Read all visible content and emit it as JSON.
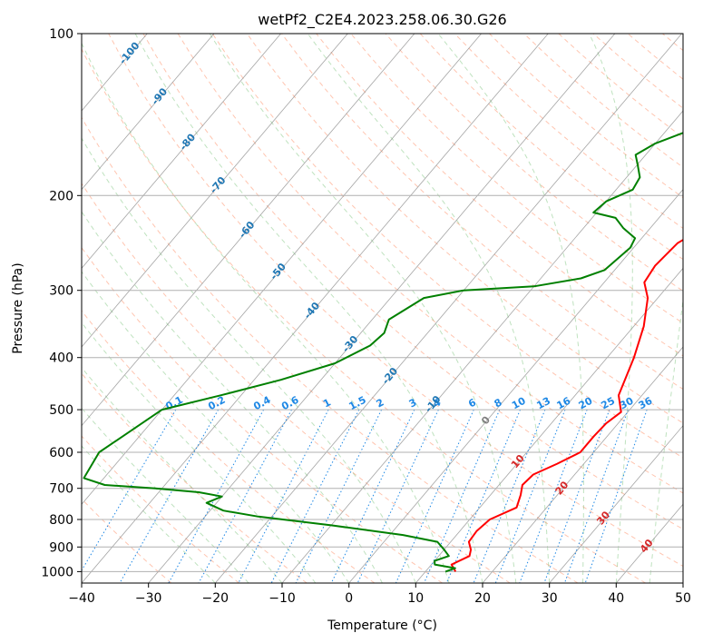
{
  "chart_data": {
    "type": "line",
    "title": "wetPf2_C2E4.2023.258.06.30.G26",
    "xlabel": "Temperature (°C)",
    "ylabel": "Pressure (hPa)",
    "xlim": [
      -40,
      50
    ],
    "ylim": [
      1050,
      100
    ],
    "y_scale": "log",
    "x_ticks": [
      -40,
      -30,
      -20,
      -10,
      0,
      10,
      20,
      30,
      40,
      50
    ],
    "y_ticks": [
      100,
      200,
      300,
      400,
      500,
      600,
      700,
      800,
      900,
      1000
    ],
    "grid": true,
    "series": [
      {
        "color": "#ff0000",
        "points": [
          [
            14.5,
            1000
          ],
          [
            13.0,
            970
          ],
          [
            14.6,
            935
          ],
          [
            14.0,
            910
          ],
          [
            12.7,
            880
          ],
          [
            12.5,
            840
          ],
          [
            13.0,
            800
          ],
          [
            15.5,
            760
          ],
          [
            14.5,
            720
          ],
          [
            13.5,
            690
          ],
          [
            13.8,
            660
          ],
          [
            16.0,
            630
          ],
          [
            18.0,
            600
          ],
          [
            18.0,
            560
          ],
          [
            18.2,
            530
          ],
          [
            19.0,
            505
          ],
          [
            16.5,
            470
          ],
          [
            14.0,
            400
          ],
          [
            11.5,
            350
          ],
          [
            8.5,
            310
          ],
          [
            6.0,
            290
          ],
          [
            5.5,
            270
          ],
          [
            6.0,
            245
          ],
          [
            8.5,
            225
          ],
          [
            9.5,
            205
          ],
          [
            8.5,
            195
          ],
          [
            9.5,
            180
          ],
          [
            10.0,
            165
          ],
          [
            9.5,
            152
          ],
          [
            10.5,
            142
          ],
          [
            13.0,
            135
          ],
          [
            15.0,
            128
          ],
          [
            16.5,
            120
          ],
          [
            16.8,
            110
          ],
          [
            16.0,
            100
          ]
        ]
      },
      {
        "color": "#008000",
        "points": [
          [
            13.0,
            1000
          ],
          [
            14.0,
            985
          ],
          [
            10.5,
            970
          ],
          [
            10.0,
            955
          ],
          [
            11.5,
            935
          ],
          [
            10.0,
            910
          ],
          [
            8.0,
            880
          ],
          [
            2.0,
            855
          ],
          [
            -10.0,
            820
          ],
          [
            -22.0,
            790
          ],
          [
            -28.0,
            770
          ],
          [
            -31.5,
            745
          ],
          [
            -30.0,
            725
          ],
          [
            -34.0,
            712
          ],
          [
            -41.0,
            700
          ],
          [
            -49.0,
            690
          ],
          [
            -53.0,
            670
          ],
          [
            -54.0,
            600
          ],
          [
            -50.0,
            500
          ],
          [
            -43.0,
            470
          ],
          [
            -36.0,
            440
          ],
          [
            -30.0,
            410
          ],
          [
            -27.0,
            380
          ],
          [
            -26.5,
            360
          ],
          [
            -27.5,
            340
          ],
          [
            -25.0,
            310
          ],
          [
            -20.0,
            300
          ],
          [
            -10.0,
            295
          ],
          [
            -4.0,
            285
          ],
          [
            -1.5,
            275
          ],
          [
            -0.5,
            250
          ],
          [
            -1.0,
            240
          ],
          [
            -4.0,
            230
          ],
          [
            -6.5,
            220
          ],
          [
            -10.5,
            215
          ],
          [
            -10.0,
            205
          ],
          [
            -7.5,
            195
          ],
          [
            -8.0,
            185
          ],
          [
            -10.0,
            175
          ],
          [
            -11.5,
            168
          ],
          [
            -10.0,
            160
          ],
          [
            -6.0,
            150
          ],
          [
            -3.5,
            140
          ],
          [
            -2.5,
            130
          ],
          [
            -1.5,
            122
          ],
          [
            1.5,
            115
          ],
          [
            5.5,
            110
          ],
          [
            8.5,
            105
          ],
          [
            10.5,
            100
          ]
        ]
      }
    ],
    "skewed_isotherms": [
      -100,
      -90,
      -80,
      -70,
      -60,
      -50,
      -40,
      -30,
      -20,
      -10,
      0,
      10,
      20,
      30,
      40,
      50
    ],
    "isotherm_labels": [
      "-100",
      "-90",
      "-80",
      "-70",
      "-60",
      "-50",
      "-40",
      "-30",
      "-20",
      "-10",
      "0",
      "10",
      "20",
      "30",
      "40"
    ],
    "mixing_ratio_lines": [
      "0.1",
      "0.2",
      "0.4",
      "0.6",
      "1",
      "1.5",
      "2",
      "3",
      "4",
      "6",
      "8",
      "10",
      "13",
      "16",
      "20",
      "25",
      "30",
      "36"
    ],
    "colors": {
      "temperature": "#ff0000",
      "dewpoint": "#008000",
      "cold_isotherm_labels": "#1f77b4",
      "zero_isotherm_label": "#808080",
      "warm_isotherm_labels": "#d62728",
      "mixing_ratio": "#1e88e5",
      "dry_adiabats": "#ff7f50",
      "moist_adiabats": "#2ca02c",
      "grid": "#b0b0b0"
    }
  }
}
